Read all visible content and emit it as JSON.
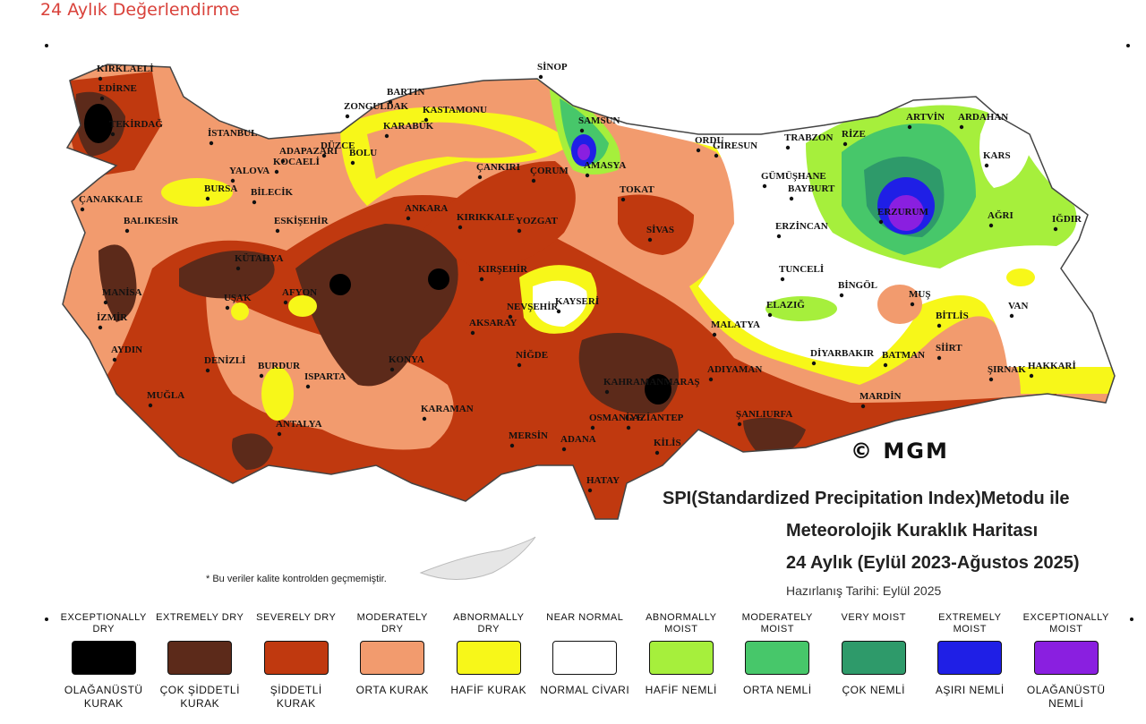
{
  "page_title": "24 Aylık Değerlendirme",
  "watermark": "© MGM",
  "titles": {
    "line1": "SPI(Standardized Precipitation Index)Metodu ile",
    "line2": "Meteorolojik Kuraklık Haritası",
    "line3": "24 Aylık (Eylül 2023-Ağustos 2025)",
    "line4": "Hazırlanış Tarihi: Eylül 2025"
  },
  "note": "* Bu veriler kalite kontrolden geçmemiştir.",
  "colors": {
    "exceptionally_dry": "#000000",
    "extremely_dry": "#5c2a1a",
    "severely_dry": "#c0390f",
    "moderately_dry": "#f29b6e",
    "abnormally_dry": "#f7f719",
    "near_normal": "#ffffff",
    "abnormally_moist": "#a6ef3c",
    "moderately_moist": "#47c76a",
    "very_moist": "#2e9a6a",
    "extremely_moist": "#1f1fe6",
    "exceptionally_moist": "#8a1fe0"
  },
  "legend": [
    {
      "en": "EXCEPTIONALLY DRY",
      "tr": "OLAĞANÜSTÜ KURAK",
      "color": "#000000"
    },
    {
      "en": "EXTREMELY DRY",
      "tr": "ÇOK ŞİDDETLİ KURAK",
      "color": "#5c2a1a"
    },
    {
      "en": "SEVERELY DRY",
      "tr": "ŞİDDETLİ KURAK",
      "color": "#c0390f"
    },
    {
      "en": "MODERATELY DRY",
      "tr": "ORTA KURAK",
      "color": "#f29b6e"
    },
    {
      "en": "ABNORMALLY DRY",
      "tr": "HAFİF KURAK",
      "color": "#f7f719"
    },
    {
      "en": "NEAR NORMAL",
      "tr": "NORMAL CİVARI",
      "color": "#ffffff"
    },
    {
      "en": "ABNORMALLY MOIST",
      "tr": "HAFİF NEMLİ",
      "color": "#a6ef3c"
    },
    {
      "en": "MODERATELY MOIST",
      "tr": "ORTA NEMLİ",
      "color": "#47c76a"
    },
    {
      "en": "VERY MOIST",
      "tr": "ÇOK NEMLİ",
      "color": "#2e9a6a"
    },
    {
      "en": "EXTREMELY MOIST",
      "tr": "AŞIRI NEMLİ",
      "color": "#1f1fe6"
    },
    {
      "en": "EXCEPTIONALLY MOIST",
      "tr": "OLAĞANÜSTÜ NEMLİ",
      "color": "#8a1fe0"
    }
  ],
  "cities": [
    "KIRKLAELİ",
    "EDİRNE",
    "TEKİRDAĞ",
    "İSTANBUL",
    "ÇANAKKALE",
    "BALIKESİR",
    "BURSA",
    "YALOVA",
    "KOCAELİ",
    "ADAPAZARI",
    "DÜZCE",
    "BOLU",
    "BİLECİK",
    "ESKİŞEHİR",
    "BARTIN",
    "ZONGULDAK",
    "KARABÜK",
    "KASTAMONU",
    "SİNOP",
    "SAMSUN",
    "ÇANKIRI",
    "ÇORUM",
    "AMASYA",
    "TOKAT",
    "ORDU",
    "GİRESUN",
    "TRABZON",
    "RİZE",
    "ARTVİN",
    "ARDAHAN",
    "KARS",
    "IĞDIR",
    "AĞRI",
    "ERZURUM",
    "BAYBURT",
    "GÜMÜŞHANE",
    "ERZİNCAN",
    "ANKARA",
    "KIRIKKALE",
    "YOZGAT",
    "SİVAS",
    "KÜTAHYA",
    "MANİSA",
    "İZMİR",
    "AYDIN",
    "UŞAK",
    "AFYON",
    "DENİZLİ",
    "MUĞLA",
    "BURDUR",
    "ISPARTA",
    "ANTALYA",
    "KONYA",
    "KARAMAN",
    "AKSARAY",
    "NEVŞEHİR",
    "KIRŞEHİR",
    "KAYSERİ",
    "NİĞDE",
    "MERSİN",
    "ADANA",
    "OSMANİYE",
    "HATAY",
    "GAZİANTEP",
    "KİLİS",
    "KAHRAMANMARAŞ",
    "MALATYA",
    "ADIYAMAN",
    "ŞANLIURFA",
    "TUNCELİ",
    "ELAZIĞ",
    "BİNGÖL",
    "MUŞ",
    "VAN",
    "BİTLİS",
    "DİYARBAKIR",
    "BATMAN",
    "SİİRT",
    "MARDİN",
    "ŞIRNAK",
    "HAKKARİ"
  ]
}
